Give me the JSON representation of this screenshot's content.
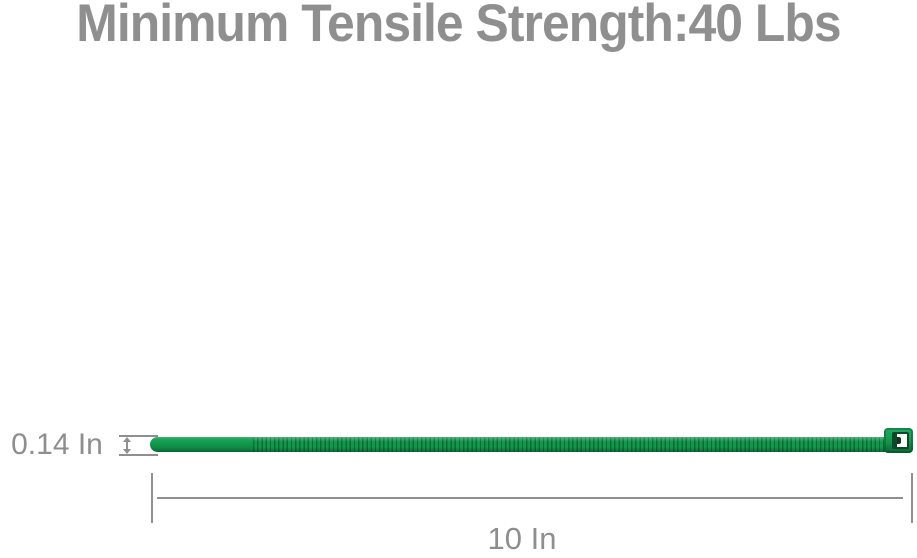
{
  "title": {
    "text": "Minimum Tensile Strength:40 Lbs"
  },
  "diagram": {
    "product": "green nylon cable zip tie",
    "dimensions": {
      "thickness": {
        "label": "0.14 In"
      },
      "length": {
        "label": "10 In"
      }
    }
  },
  "colors": {
    "title-gray": "#8f8f8f",
    "gray-text": "#8e8e8e",
    "gray-line": "#8f8f8f",
    "green-main": "#12984d",
    "green-dark": "#0a6232",
    "slot-white": "#ffffff",
    "pawl-dark": "#14361f"
  }
}
